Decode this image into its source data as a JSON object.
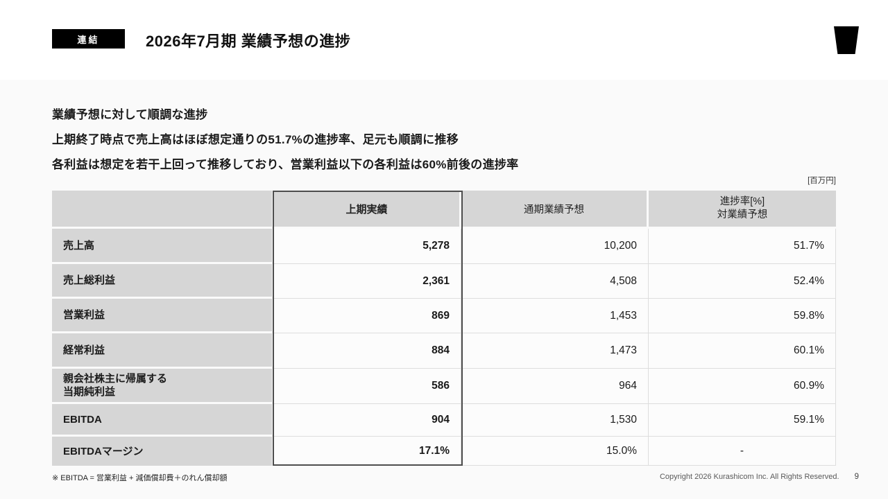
{
  "header": {
    "badge": "連結",
    "title": "2026年7月期 業績予想の進捗"
  },
  "intro_lines": [
    "業績予想に対して順調な進捗",
    "上期終了時点で売上高はほぼ想定通りの51.7%の進捗率、足元も順調に推移",
    "各利益は想定を若干上回って推移しており、営業利益以下の各利益は60%前後の進捗率"
  ],
  "unit_label": "[百万円]",
  "table": {
    "headers": {
      "h1_actual": "上期実績",
      "full_year_forecast": "通期業績予想",
      "progress_line1": "進捗率[%]",
      "progress_line2": "対業績予想"
    },
    "rows": [
      {
        "label": "売上高",
        "h1": "5,278",
        "forecast": "10,200",
        "progress": "51.7%"
      },
      {
        "label": "売上総利益",
        "h1": "2,361",
        "forecast": "4,508",
        "progress": "52.4%"
      },
      {
        "label": "営業利益",
        "h1": "869",
        "forecast": "1,453",
        "progress": "59.8%"
      },
      {
        "label": "経常利益",
        "h1": "884",
        "forecast": "1,473",
        "progress": "60.1%"
      },
      {
        "label_line1": "親会社株主に帰属する",
        "label_line2": "当期純利益",
        "h1": "586",
        "forecast": "964",
        "progress": "60.9%"
      },
      {
        "label": "EBITDA",
        "h1": "904",
        "forecast": "1,530",
        "progress": "59.1%"
      },
      {
        "label": "EBITDAマージン",
        "h1": "17.1%",
        "forecast": "15.0%",
        "progress": "-"
      }
    ]
  },
  "footnote": "※ EBITDA = 営業利益 + 減価償却費＋のれん償却額",
  "footer": {
    "copyright": "Copyright 2026 Kurashicom Inc. All Rights Reserved.",
    "page_number": "9"
  },
  "colors": {
    "accent_black": "#000000",
    "content_background": "#fafafa",
    "table_gray_cell": "#d6d6d6",
    "data_cell": "#fcfcfc",
    "highlight_border": "#4d4d4d"
  }
}
